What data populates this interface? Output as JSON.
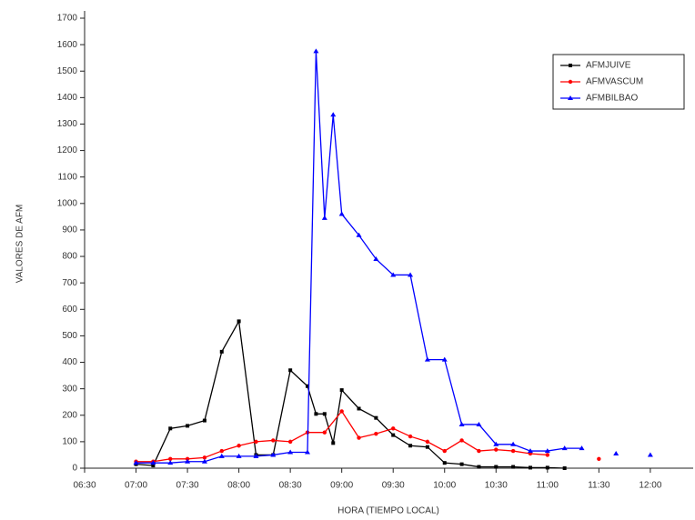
{
  "chart_data": {
    "type": "line",
    "x_label": "HORA (TIEMPO LOCAL)",
    "y_label": "VALORES DE AFM",
    "xlim": [
      390,
      745
    ],
    "xticks": [
      {
        "value": 390,
        "label": "06:30"
      },
      {
        "value": 420,
        "label": "07:00"
      },
      {
        "value": 450,
        "label": "07:30"
      },
      {
        "value": 480,
        "label": "08:00"
      },
      {
        "value": 510,
        "label": "08:30"
      },
      {
        "value": 540,
        "label": "09:00"
      },
      {
        "value": 570,
        "label": "09:30"
      },
      {
        "value": 600,
        "label": "10:00"
      },
      {
        "value": 630,
        "label": "10:30"
      },
      {
        "value": 660,
        "label": "11:00"
      },
      {
        "value": 690,
        "label": "11:30"
      },
      {
        "value": 720,
        "label": "12:00"
      }
    ],
    "ylim": [
      0,
      1700
    ],
    "yticks": [
      0,
      100,
      200,
      300,
      400,
      500,
      600,
      700,
      800,
      900,
      1000,
      1100,
      1200,
      1300,
      1400,
      1500,
      1600,
      1700
    ],
    "legend": "top-right",
    "series": [
      {
        "name": "AFMJUIVE",
        "color": "#000000",
        "marker": "square",
        "x": [
          420,
          430,
          440,
          450,
          460,
          470,
          480,
          490,
          500,
          510,
          520,
          525,
          530,
          535,
          540,
          550,
          560,
          570,
          580,
          590,
          600,
          610,
          620,
          630,
          640,
          650,
          660,
          670
        ],
        "values": [
          15,
          10,
          150,
          160,
          180,
          440,
          555,
          50,
          50,
          370,
          310,
          205,
          205,
          95,
          295,
          225,
          190,
          125,
          85,
          80,
          20,
          15,
          5,
          5,
          5,
          2,
          2,
          0
        ]
      },
      {
        "name": "AFMVASCUM",
        "color": "#ff0000",
        "marker": "circle",
        "x": [
          420,
          430,
          440,
          450,
          460,
          470,
          480,
          490,
          500,
          510,
          520,
          530,
          540,
          550,
          560,
          570,
          580,
          590,
          600,
          610,
          620,
          630,
          640,
          650,
          660,
          670,
          690
        ],
        "values": [
          25,
          25,
          35,
          35,
          40,
          65,
          85,
          100,
          105,
          100,
          135,
          135,
          215,
          115,
          130,
          150,
          120,
          100,
          65,
          105,
          65,
          70,
          65,
          55,
          50,
          null,
          35
        ]
      },
      {
        "name": "AFMBILBAO",
        "color": "#0000ff",
        "marker": "triangle",
        "x": [
          420,
          430,
          440,
          450,
          460,
          470,
          480,
          490,
          500,
          510,
          520,
          525,
          530,
          535,
          540,
          550,
          560,
          570,
          580,
          590,
          600,
          610,
          620,
          630,
          640,
          650,
          660,
          670,
          680,
          690,
          700,
          710,
          720
        ],
        "values": [
          20,
          20,
          20,
          25,
          25,
          45,
          45,
          45,
          50,
          60,
          60,
          1575,
          945,
          1335,
          960,
          880,
          790,
          730,
          730,
          410,
          410,
          165,
          165,
          90,
          90,
          65,
          65,
          75,
          75,
          null,
          55,
          null,
          50
        ]
      }
    ]
  }
}
